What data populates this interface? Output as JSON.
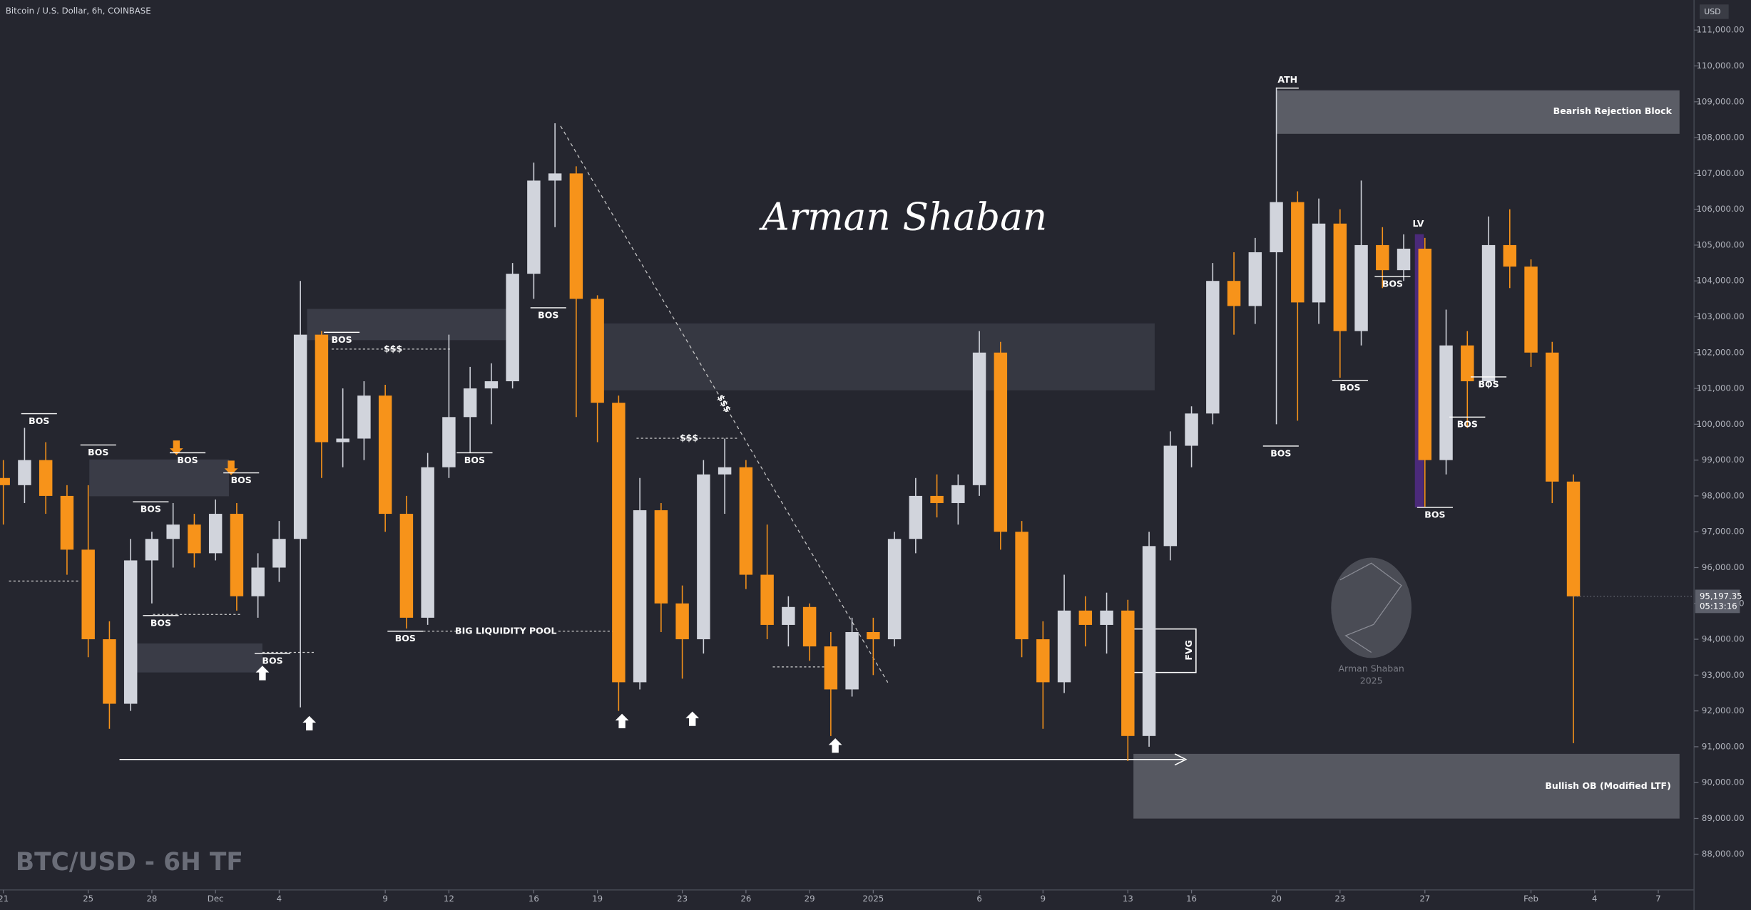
{
  "chart_data": {
    "type": "candlestick",
    "title": "Bitcoin / U.S. Dollar, 6h, COINBASE",
    "watermark": "BTC/USD - 6H TF",
    "signature": "Arman Shaban",
    "logo_name": "Arman Shaban",
    "logo_year": "2025",
    "currency": "USD",
    "last_price_label": "95,197.35",
    "countdown": "05:13:16",
    "up_color": "#d1d4dc",
    "down_color": "#f7931a",
    "grid": false,
    "xlim": [
      -0.63,
      318.74
    ],
    "ylim": [
      87004,
      111840
    ],
    "x": [
      0,
      4,
      8,
      12,
      16,
      20,
      24,
      28,
      32,
      36,
      40,
      44,
      48,
      52,
      56,
      60,
      64,
      68,
      72,
      76,
      80,
      84,
      88,
      92,
      96,
      100,
      104,
      108,
      112,
      116,
      120,
      124,
      128,
      132,
      136,
      140,
      144,
      148,
      152,
      156,
      160,
      164,
      168,
      172,
      176,
      180,
      184,
      188,
      192,
      196,
      200,
      204,
      208,
      212,
      216,
      220,
      224,
      228,
      232,
      236,
      240,
      244,
      248,
      252,
      256,
      260,
      264,
      268,
      272,
      276,
      280,
      284,
      288,
      292,
      296
    ],
    "open": [
      98500,
      98300,
      99000,
      98000,
      96500,
      94000,
      92200,
      96200,
      96800,
      97200,
      96400,
      97500,
      95200,
      96000,
      96800,
      102500,
      99500,
      99600,
      100800,
      97500,
      94600,
      98800,
      100200,
      101000,
      101200,
      104200,
      106800,
      107000,
      103500,
      100600,
      92800,
      97600,
      95000,
      94000,
      98600,
      98800,
      95800,
      94400,
      94900,
      93800,
      92600,
      94200,
      94000,
      96800,
      98000,
      97800,
      98300,
      102000,
      97000,
      94000,
      92800,
      94800,
      94400,
      94800,
      91300,
      96600,
      99400,
      100300,
      104000,
      103300,
      104800,
      106200,
      103400,
      105600,
      102600,
      105000,
      104300,
      104900,
      99000,
      102200,
      101200,
      105000,
      104400,
      102000,
      98400
    ],
    "high": [
      99000,
      99900,
      99500,
      98300,
      98300,
      94500,
      96800,
      97000,
      97800,
      97500,
      97900,
      97800,
      96400,
      97300,
      104000,
      102600,
      101000,
      101200,
      101100,
      98000,
      99200,
      102500,
      101600,
      101700,
      104500,
      107300,
      108400,
      107200,
      103600,
      100800,
      98500,
      97800,
      95500,
      99000,
      99600,
      99000,
      97200,
      95200,
      95000,
      94200,
      94600,
      94600,
      97000,
      98500,
      98600,
      98600,
      102600,
      102300,
      97300,
      94500,
      95800,
      95200,
      95300,
      95100,
      97000,
      99800,
      100500,
      104500,
      104800,
      105200,
      109400,
      106500,
      106300,
      106000,
      106800,
      105500,
      105300,
      105200,
      103200,
      102600,
      105800,
      106000,
      104600,
      102300,
      98600
    ],
    "low": [
      97200,
      97800,
      97500,
      95800,
      93500,
      91500,
      92000,
      95000,
      96000,
      96000,
      96200,
      94800,
      94600,
      95600,
      92100,
      98500,
      98800,
      99000,
      97000,
      94300,
      94400,
      98500,
      99200,
      100000,
      101000,
      103500,
      105500,
      100200,
      99500,
      92000,
      92600,
      94200,
      92900,
      93600,
      97500,
      95400,
      94000,
      93800,
      93400,
      91300,
      92400,
      93000,
      93800,
      96400,
      97400,
      97200,
      98000,
      96500,
      93500,
      91500,
      92500,
      93800,
      93600,
      90600,
      91000,
      96200,
      98800,
      100000,
      102500,
      102800,
      100000,
      100100,
      102800,
      101300,
      102200,
      103800,
      104000,
      97700,
      98600,
      99900,
      101000,
      103800,
      101600,
      97800,
      91100
    ],
    "close": [
      98300,
      99000,
      98000,
      96500,
      94000,
      92200,
      96200,
      96800,
      97200,
      96400,
      97500,
      95200,
      96000,
      96800,
      102500,
      99500,
      99600,
      100800,
      97500,
      94600,
      98800,
      100200,
      101000,
      101200,
      104200,
      106800,
      107000,
      103500,
      100600,
      92800,
      97600,
      95000,
      94000,
      98600,
      98800,
      95800,
      94400,
      94900,
      93800,
      92600,
      94200,
      94000,
      96800,
      98000,
      97800,
      98300,
      102000,
      97000,
      94000,
      92800,
      94800,
      94400,
      94800,
      91300,
      96600,
      99400,
      100300,
      104000,
      103300,
      104800,
      106200,
      103400,
      105600,
      102600,
      105000,
      104300,
      104900,
      99000,
      102200,
      101200,
      105000,
      104400,
      102000,
      98400,
      95197.35
    ],
    "yticks": [
      {
        "value": 88000,
        "label": "88,000.00"
      },
      {
        "value": 89000,
        "label": "89,000.00"
      },
      {
        "value": 90000,
        "label": "90,000.00"
      },
      {
        "value": 91000,
        "label": "91,000.00"
      },
      {
        "value": 92000,
        "label": "92,000.00"
      },
      {
        "value": 93000,
        "label": "93,000.00"
      },
      {
        "value": 94000,
        "label": "94,000.00"
      },
      {
        "value": 95000,
        "label": "95,000.00"
      },
      {
        "value": 96000,
        "label": "96,000.00"
      },
      {
        "value": 97000,
        "label": "97,000.00"
      },
      {
        "value": 98000,
        "label": "98,000.00"
      },
      {
        "value": 99000,
        "label": "99,000.00"
      },
      {
        "value": 100000,
        "label": "100,000.00"
      },
      {
        "value": 101000,
        "label": "101,000.00"
      },
      {
        "value": 102000,
        "label": "102,000.00"
      },
      {
        "value": 103000,
        "label": "103,000.00"
      },
      {
        "value": 104000,
        "label": "104,000.00"
      },
      {
        "value": 105000,
        "label": "105,000.00"
      },
      {
        "value": 106000,
        "label": "106,000.00"
      },
      {
        "value": 107000,
        "label": "107,000.00"
      },
      {
        "value": 108000,
        "label": "108,000.00"
      },
      {
        "value": 109000,
        "label": "109,000.00"
      },
      {
        "value": 110000,
        "label": "110,000.00"
      },
      {
        "value": 111000,
        "label": "111,000.00"
      }
    ],
    "xticks": [
      {
        "value": 0,
        "label": "21"
      },
      {
        "value": 16,
        "label": "25"
      },
      {
        "value": 28,
        "label": "28"
      },
      {
        "value": 40,
        "label": "Dec"
      },
      {
        "value": 52,
        "label": "4"
      },
      {
        "value": 72,
        "label": "9"
      },
      {
        "value": 84,
        "label": "12"
      },
      {
        "value": 100,
        "label": "16"
      },
      {
        "value": 112,
        "label": "19"
      },
      {
        "value": 128,
        "label": "23"
      },
      {
        "value": 140,
        "label": "26"
      },
      {
        "value": 152,
        "label": "29"
      },
      {
        "value": 164,
        "label": "2025"
      },
      {
        "value": 184,
        "label": "6"
      },
      {
        "value": 196,
        "label": "9"
      },
      {
        "value": 212,
        "label": "13"
      },
      {
        "value": 224,
        "label": "16"
      },
      {
        "value": 240,
        "label": "20"
      },
      {
        "value": 252,
        "label": "23"
      },
      {
        "value": 268,
        "label": "27"
      },
      {
        "value": 288,
        "label": "Feb"
      },
      {
        "value": 300,
        "label": "4"
      },
      {
        "value": 312,
        "label": "7"
      }
    ],
    "annotations": [
      "BOS",
      "BOS",
      "BOS",
      "BOS",
      "BOS",
      "BOS",
      "BOS",
      "BOS",
      "BOS",
      "BOS",
      "BOS",
      "BOS",
      "BOS",
      "BOS",
      "BOS",
      "BOS",
      "BOS",
      "$$$",
      "$$$",
      "$$$",
      "BIG LIQUIDITY POOL",
      "ATH",
      "LV",
      "FVG",
      "Bearish Rejection Block",
      "Bullish OB (Modified LTF)"
    ]
  }
}
